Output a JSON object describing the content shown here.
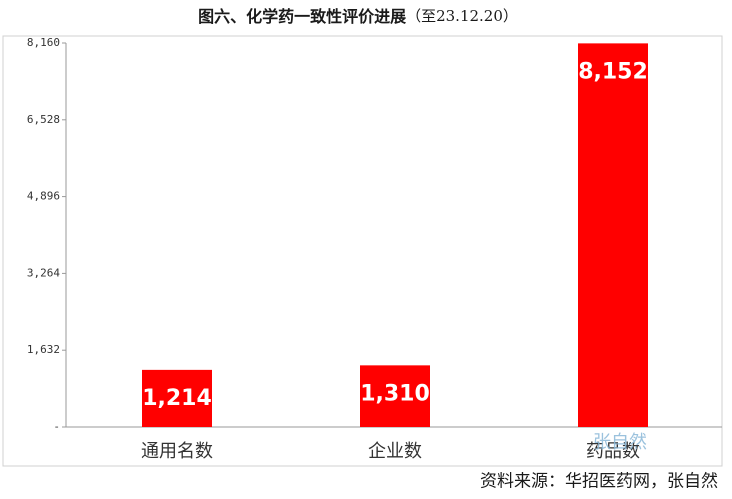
{
  "chart_data": {
    "type": "bar",
    "title": "图六、化学药一致性评价进展",
    "title_note": "（至23.12.20）",
    "categories": [
      "通用名数",
      "企业数",
      "药品数"
    ],
    "values": [
      1214,
      1310,
      8152
    ],
    "value_labels": [
      "1,214",
      "1,310",
      "8,152"
    ],
    "color": "#ff0000",
    "ylim": [
      0,
      8160
    ],
    "yticks": [
      {
        "value": 0,
        "label": "-"
      },
      {
        "value": 1632,
        "label": "1,632"
      },
      {
        "value": 3264,
        "label": "3,264"
      },
      {
        "value": 4896,
        "label": "4,896"
      },
      {
        "value": 6528,
        "label": "6,528"
      },
      {
        "value": 8160,
        "label": "8,160"
      }
    ],
    "grid": false,
    "source": "资料来源：华招医药网，张自然",
    "watermark": "张自然"
  }
}
